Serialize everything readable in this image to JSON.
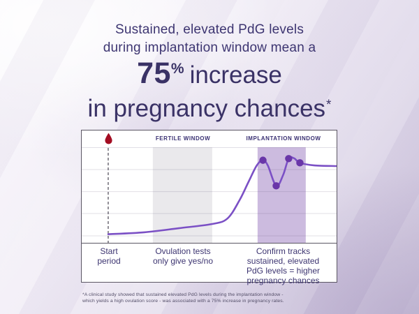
{
  "header": {
    "line1": "Sustained, elevated PdG levels",
    "line2": "during implantation window mean a"
  },
  "headline": {
    "number": "75",
    "percent": "%",
    "word": "increase",
    "line2": "in pregnancy chances",
    "asterisk": "*"
  },
  "footnote": {
    "line1": "*A clinical study showed that sustained elevated PdG levels during the implantation window -",
    "line2": "which yields a high ovulation score - was associated with a 75% increase in pregnancy rates."
  },
  "colors": {
    "heading_text": "#3D3571",
    "curve": "#7B50C5",
    "marker": "#6936A8",
    "fertile_band": "#EAE9EC",
    "implantation_band": "#CCBBDF",
    "gridline": "#DCDBE1",
    "gridline_over_band": "rgba(90,80,115,0.18)",
    "dashed_line": "#4A4653",
    "blood_drop": "#A30D22",
    "card_border": "#5B5663"
  },
  "chart_data": {
    "type": "line",
    "title": "PdG level across the menstrual cycle",
    "xlabel": "cycle timeline (no numeric ticks shown)",
    "ylabel": "PdG level (no numeric ticks shown)",
    "legend": "none",
    "grid": "horizontal gridlines only",
    "start_line_x_pct": 10.4,
    "gridlines_y_pct": [
      0,
      23.4,
      46.4,
      69.3,
      92.7
    ],
    "bands": [
      {
        "label": "FERTILE WINDOW",
        "name": "fertile-window-band",
        "x_start_pct": 27.9,
        "x_end_pct": 51.2,
        "color_key": "fertile_band"
      },
      {
        "label": "IMPLANTATION WINDOW",
        "name": "implantation-window-band",
        "x_start_pct": 69.0,
        "x_end_pct": 87.9,
        "color_key": "implantation_band"
      }
    ],
    "curve_points_pct": [
      [
        10.4,
        91.0
      ],
      [
        24.5,
        89.0
      ],
      [
        38.1,
        84.7
      ],
      [
        51.2,
        80.3
      ],
      [
        57.2,
        74.5
      ],
      [
        61.9,
        55.5
      ],
      [
        65.4,
        36.5
      ],
      [
        68.7,
        19.0
      ],
      [
        71.1,
        13.6
      ],
      [
        73.0,
        19.0
      ],
      [
        76.3,
        40.4
      ],
      [
        79.0,
        29.2
      ],
      [
        81.2,
        11.9
      ],
      [
        83.4,
        11.7
      ],
      [
        85.6,
        16.3
      ],
      [
        91.3,
        19.0
      ],
      [
        100.0,
        19.7
      ]
    ],
    "markers_pct": [
      [
        71.1,
        13.6
      ],
      [
        76.3,
        40.4
      ],
      [
        81.2,
        11.9
      ],
      [
        85.6,
        16.3
      ]
    ],
    "annotations": [
      {
        "label": "Start\nperiod"
      },
      {
        "label": "Ovulation tests\nonly give yes/no"
      },
      {
        "label": "Confirm tracks\nsustained, elevated\nPdG levels = higher\npregnancy chances"
      }
    ]
  }
}
